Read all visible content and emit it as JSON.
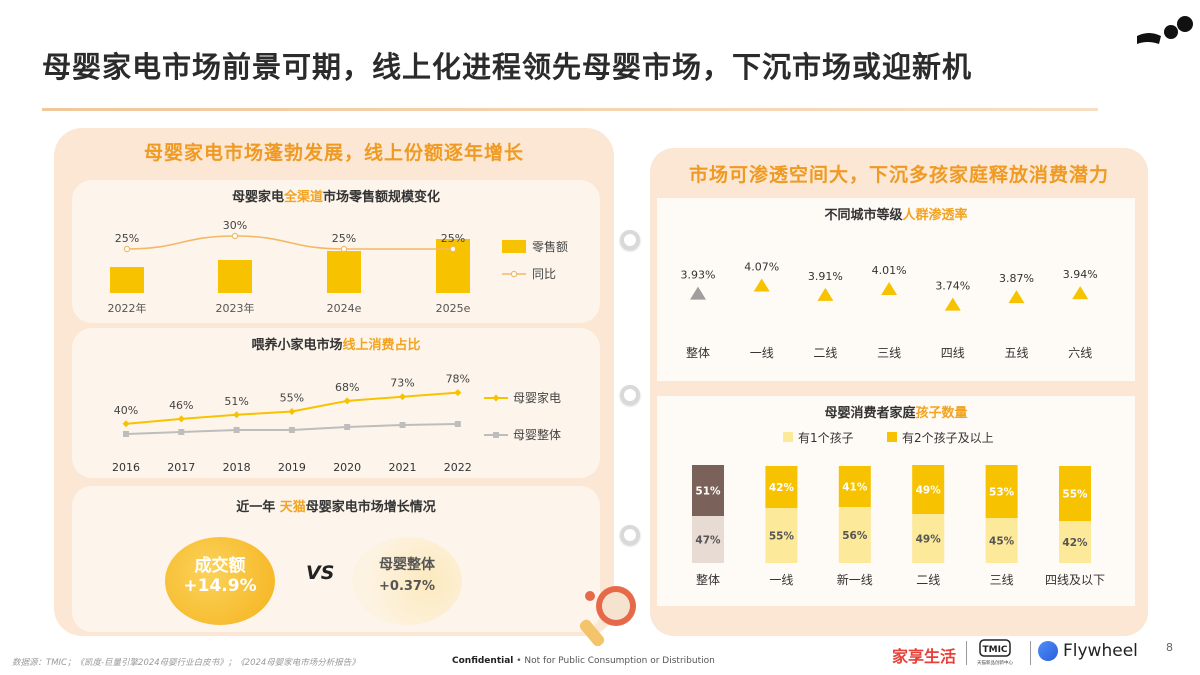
{
  "page": {
    "title": "母婴家电市场前景可期，线上化进程领先母婴市场，下沉市场或迎新机",
    "left_header": "母婴家电市场蓬勃发展，线上份额逐年增长",
    "right_header": "市场可渗透空间大，下沉多孩家庭释放消费潜力",
    "page_number": "8"
  },
  "footer": {
    "source": "数据源：TMIC；《凯度-巨量引擎2024母婴行业白皮书》；《2024母婴家电市场分析报告》",
    "confidential_bold": "Confidential",
    "confidential_rest": " • Not for Public Consumption or Distribution",
    "brand_1": "家享生活",
    "brand_2_badge": "TMIC",
    "brand_2_sub": "天猫新品创新中心",
    "brand_3": "Flywheel"
  },
  "tmall_compare": {
    "title_pre": "近一年 ",
    "title_hl": "天猫",
    "title_post": "母婴家电市场增长情况",
    "left_label": "成交额",
    "left_value": "+14.9%",
    "vs": "VS",
    "right_label": "母婴整体",
    "right_value": "+0.37%"
  },
  "colors": {
    "accent": "#ef9a23",
    "bar_yellow": "#f7c200",
    "light_yellow": "#fde99a",
    "gray": "#bdbdbd",
    "brown": "#7a625a",
    "beige": "#e8dbd3"
  },
  "chart_data": [
    {
      "type": "bar",
      "title_pre": "母婴家电",
      "title_hl": "全渠道",
      "title_post": "市场零售额规模变化",
      "categories": [
        "2022年",
        "2023年",
        "2024e",
        "2025e"
      ],
      "series": [
        {
          "name": "零售额",
          "values": [
            null,
            null,
            null,
            null
          ]
        },
        {
          "name": "同比",
          "values": [
            25,
            30,
            25,
            25
          ],
          "labels": [
            "25%",
            "30%",
            "25%",
            "25%"
          ]
        }
      ],
      "legend": "right"
    },
    {
      "type": "line",
      "title_pre": "喂养小家电市场",
      "title_hl": "线上消费占比",
      "categories": [
        "2016",
        "2017",
        "2018",
        "2019",
        "2020",
        "2021",
        "2022"
      ],
      "series": [
        {
          "name": "母婴家电",
          "values": [
            40,
            46,
            51,
            55,
            68,
            73,
            78
          ],
          "labels": [
            "40%",
            "46%",
            "51%",
            "55%",
            "68%",
            "73%",
            "78%"
          ]
        },
        {
          "name": "母婴整体",
          "values": [
            null,
            null,
            null,
            null,
            null,
            null,
            null
          ]
        }
      ],
      "legend": "right"
    },
    {
      "type": "scatter",
      "title_pre": "不同城市等级",
      "title_hl": "人群渗透率",
      "categories": [
        "整体",
        "一线",
        "二线",
        "三线",
        "四线",
        "五线",
        "六线"
      ],
      "values": [
        3.93,
        4.07,
        3.91,
        4.01,
        3.74,
        3.87,
        3.94
      ],
      "labels": [
        "3.93%",
        "4.07%",
        "3.91%",
        "4.01%",
        "3.74%",
        "3.87%",
        "3.94%"
      ]
    },
    {
      "type": "bar",
      "stacked": true,
      "title_pre": "母婴消费者家庭",
      "title_hl": "孩子数量",
      "categories": [
        "整体",
        "一线",
        "新一线",
        "二线",
        "三线",
        "四线及以下"
      ],
      "series": [
        {
          "name": "有1个孩子",
          "values": [
            47,
            55,
            56,
            49,
            45,
            42
          ],
          "labels": [
            "47%",
            "55%",
            "56%",
            "49%",
            "45%",
            "42%"
          ]
        },
        {
          "name": "有2个孩子及以上",
          "values": [
            51,
            42,
            41,
            49,
            53,
            55
          ],
          "labels": [
            "51%",
            "42%",
            "41%",
            "49%",
            "53%",
            "55%"
          ]
        }
      ],
      "legend": "top"
    }
  ]
}
